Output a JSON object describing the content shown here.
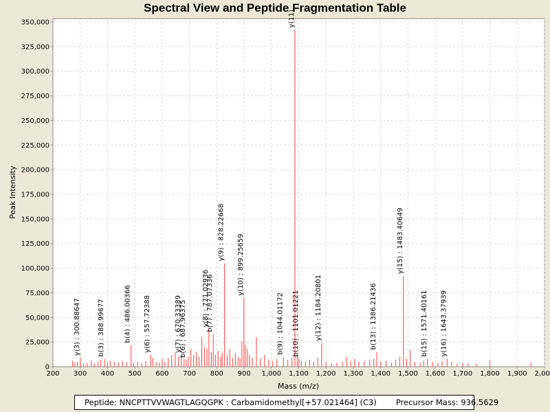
{
  "chart_data": {
    "type": "bar",
    "title": "Spectral View and Peptide Fragmentation Table",
    "xlabel": "Mass (m/z)",
    "ylabel": "Peak Intensity",
    "xlim": [
      200,
      2000
    ],
    "ylim": [
      0,
      350000
    ],
    "x_ticks": [
      200,
      300,
      400,
      500,
      600,
      700,
      800,
      900,
      1000,
      1100,
      1200,
      1300,
      1400,
      1500,
      1600,
      1700,
      1800,
      1900,
      2000
    ],
    "x_tick_labels": [
      "200",
      "300",
      "400",
      "500",
      "600",
      "700",
      "800",
      "900",
      "1,000",
      "1,100",
      "1,200",
      "1,300",
      "1,400",
      "1,500",
      "1,600",
      "1,700",
      "1,800",
      "1,900",
      "2,000"
    ],
    "y_ticks": [
      0,
      25000,
      50000,
      75000,
      100000,
      125000,
      150000,
      175000,
      200000,
      225000,
      250000,
      275000,
      300000,
      325000,
      350000
    ],
    "y_tick_labels": [
      "0",
      "25,000",
      "50,000",
      "75,000",
      "100,000",
      "125,000",
      "150,000",
      "175,000",
      "200,000",
      "225,000",
      "250,000",
      "275,000",
      "300,000",
      "325,000",
      "350,000"
    ],
    "grid": true,
    "series_color": "#ff5a5a",
    "peaks": [
      {
        "mz": 272,
        "i": 6000
      },
      {
        "mz": 280,
        "i": 4000
      },
      {
        "mz": 290,
        "i": 5000
      },
      {
        "mz": 300.89,
        "i": 9000
      },
      {
        "mz": 312,
        "i": 3000
      },
      {
        "mz": 325,
        "i": 4000
      },
      {
        "mz": 340,
        "i": 6500
      },
      {
        "mz": 352,
        "i": 3500
      },
      {
        "mz": 365,
        "i": 5000
      },
      {
        "mz": 375,
        "i": 7000
      },
      {
        "mz": 388.99,
        "i": 8000
      },
      {
        "mz": 400,
        "i": 4000
      },
      {
        "mz": 410,
        "i": 6000
      },
      {
        "mz": 425,
        "i": 5000
      },
      {
        "mz": 440,
        "i": 4000
      },
      {
        "mz": 455,
        "i": 6000
      },
      {
        "mz": 470,
        "i": 4500
      },
      {
        "mz": 486.0,
        "i": 22000
      },
      {
        "mz": 495,
        "i": 4000
      },
      {
        "mz": 510,
        "i": 5000
      },
      {
        "mz": 525,
        "i": 4000
      },
      {
        "mz": 540,
        "i": 6000
      },
      {
        "mz": 557.72,
        "i": 12000
      },
      {
        "mz": 565,
        "i": 9000
      },
      {
        "mz": 578,
        "i": 5000
      },
      {
        "mz": 590,
        "i": 4000
      },
      {
        "mz": 600,
        "i": 8000
      },
      {
        "mz": 610,
        "i": 5000
      },
      {
        "mz": 622,
        "i": 9000
      },
      {
        "mz": 635,
        "i": 12000
      },
      {
        "mz": 648,
        "i": 15000
      },
      {
        "mz": 660,
        "i": 10000
      },
      {
        "mz": 670.33,
        "i": 12000
      },
      {
        "mz": 680,
        "i": 8000
      },
      {
        "mz": 687.96,
        "i": 7000
      },
      {
        "mz": 695,
        "i": 10000
      },
      {
        "mz": 705,
        "i": 18000
      },
      {
        "mz": 715,
        "i": 12000
      },
      {
        "mz": 725,
        "i": 15000
      },
      {
        "mz": 735,
        "i": 10000
      },
      {
        "mz": 745,
        "i": 30000
      },
      {
        "mz": 755,
        "i": 20000
      },
      {
        "mz": 764,
        "i": 18000
      },
      {
        "mz": 771.03,
        "i": 38000
      },
      {
        "mz": 780,
        "i": 15000
      },
      {
        "mz": 787.07,
        "i": 33000
      },
      {
        "mz": 795,
        "i": 12000
      },
      {
        "mz": 805,
        "i": 16000
      },
      {
        "mz": 815,
        "i": 10000
      },
      {
        "mz": 820,
        "i": 14000
      },
      {
        "mz": 828.23,
        "i": 105000
      },
      {
        "mz": 838,
        "i": 12000
      },
      {
        "mz": 848,
        "i": 18000
      },
      {
        "mz": 858,
        "i": 9000
      },
      {
        "mz": 868,
        "i": 14000
      },
      {
        "mz": 878,
        "i": 10000
      },
      {
        "mz": 885,
        "i": 9000
      },
      {
        "mz": 892,
        "i": 26000
      },
      {
        "mz": 899.26,
        "i": 70000
      },
      {
        "mz": 905,
        "i": 22000
      },
      {
        "mz": 912,
        "i": 18000
      },
      {
        "mz": 920,
        "i": 12000
      },
      {
        "mz": 930,
        "i": 9000
      },
      {
        "mz": 945,
        "i": 30000
      },
      {
        "mz": 960,
        "i": 8000
      },
      {
        "mz": 975,
        "i": 12000
      },
      {
        "mz": 990,
        "i": 7000
      },
      {
        "mz": 1005,
        "i": 6000
      },
      {
        "mz": 1020,
        "i": 8000
      },
      {
        "mz": 1044.01,
        "i": 10000
      },
      {
        "mz": 1060,
        "i": 7000
      },
      {
        "mz": 1075,
        "i": 9000
      },
      {
        "mz": 1086,
        "i": 342000
      },
      {
        "mz": 1095,
        "i": 12000
      },
      {
        "mz": 1101.01,
        "i": 8000
      },
      {
        "mz": 1110,
        "i": 6000
      },
      {
        "mz": 1125,
        "i": 5000
      },
      {
        "mz": 1140,
        "i": 7000
      },
      {
        "mz": 1155,
        "i": 5000
      },
      {
        "mz": 1170,
        "i": 9000
      },
      {
        "mz": 1184.21,
        "i": 24000
      },
      {
        "mz": 1200,
        "i": 5000
      },
      {
        "mz": 1220,
        "i": 3000
      },
      {
        "mz": 1240,
        "i": 4000
      },
      {
        "mz": 1260,
        "i": 5000
      },
      {
        "mz": 1275,
        "i": 10000
      },
      {
        "mz": 1290,
        "i": 6000
      },
      {
        "mz": 1305,
        "i": 8000
      },
      {
        "mz": 1320,
        "i": 5000
      },
      {
        "mz": 1340,
        "i": 6000
      },
      {
        "mz": 1360,
        "i": 7000
      },
      {
        "mz": 1375,
        "i": 8000
      },
      {
        "mz": 1386.21,
        "i": 15000
      },
      {
        "mz": 1400,
        "i": 5000
      },
      {
        "mz": 1420,
        "i": 6000
      },
      {
        "mz": 1440,
        "i": 4000
      },
      {
        "mz": 1455,
        "i": 7000
      },
      {
        "mz": 1470,
        "i": 10000
      },
      {
        "mz": 1483.41,
        "i": 92000
      },
      {
        "mz": 1495,
        "i": 8000
      },
      {
        "mz": 1508,
        "i": 17000
      },
      {
        "mz": 1525,
        "i": 5000
      },
      {
        "mz": 1545,
        "i": 4000
      },
      {
        "mz": 1558,
        "i": 6000
      },
      {
        "mz": 1571.4,
        "i": 8000
      },
      {
        "mz": 1590,
        "i": 5000
      },
      {
        "mz": 1610,
        "i": 4000
      },
      {
        "mz": 1625,
        "i": 6000
      },
      {
        "mz": 1643.38,
        "i": 8000
      },
      {
        "mz": 1660,
        "i": 5000
      },
      {
        "mz": 1680,
        "i": 3000
      },
      {
        "mz": 1700,
        "i": 4000
      },
      {
        "mz": 1720,
        "i": 3000
      },
      {
        "mz": 1750,
        "i": 3000
      },
      {
        "mz": 1800,
        "i": 6000
      },
      {
        "mz": 1950,
        "i": 4000
      }
    ],
    "annotations": [
      {
        "mz": 300.89,
        "i": 9000,
        "text": "y(3) : 300.88647"
      },
      {
        "mz": 388.99,
        "i": 8000,
        "text": "b(3) : 388.99677"
      },
      {
        "mz": 486.0,
        "i": 22000,
        "text": "b(4) : 486.00366"
      },
      {
        "mz": 557.72,
        "i": 12000,
        "text": "y(6) : 557.72388"
      },
      {
        "mz": 670.33,
        "i": 12000,
        "text": "y(7) : 670.33389"
      },
      {
        "mz": 687.96,
        "i": 7000,
        "text": "b(6) : 687.96375"
      },
      {
        "mz": 771.03,
        "i": 38000,
        "text": "y(8) : 771.02936"
      },
      {
        "mz": 787.07,
        "i": 33000,
        "text": "b(7) : 787.07336"
      },
      {
        "mz": 828.23,
        "i": 105000,
        "text": "y(9) : 828.22668"
      },
      {
        "mz": 899.26,
        "i": 70000,
        "text": "y(10) : 899.25659"
      },
      {
        "mz": 1044.01,
        "i": 10000,
        "text": "b(9) : 1044.01172"
      },
      {
        "mz": 1086,
        "i": 342000,
        "text": "y(11)"
      },
      {
        "mz": 1101.01,
        "i": 8000,
        "text": "b(10) : 1101.01221"
      },
      {
        "mz": 1184.21,
        "i": 24000,
        "text": "y(12) : 1184.20801"
      },
      {
        "mz": 1386.21,
        "i": 15000,
        "text": "b(13) : 1386.21436"
      },
      {
        "mz": 1483.41,
        "i": 92000,
        "text": "y(15) : 1483.40649"
      },
      {
        "mz": 1571.4,
        "i": 8000,
        "text": "b(15) : 1571.40161"
      },
      {
        "mz": 1643.38,
        "i": 8000,
        "text": "y(16) : 1643.37939"
      }
    ]
  },
  "footer": {
    "peptide": "Peptide: NNCPTTVVWAGTLAGQGPK : Carbamidomethyl[+57.021464] (C3)",
    "precursor": "Precursor Mass: 936.5629"
  }
}
